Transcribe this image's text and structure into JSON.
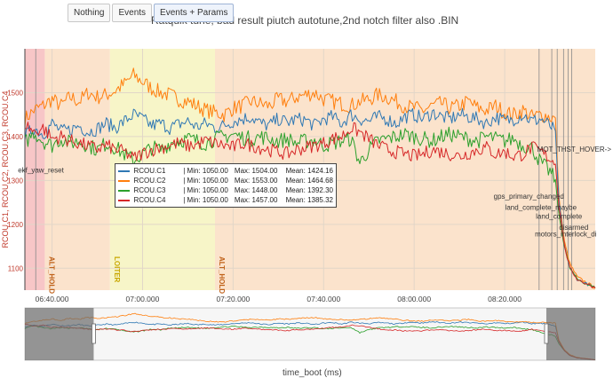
{
  "toolbar": {
    "buttons": [
      {
        "label": "Nothing"
      },
      {
        "label": "Events"
      },
      {
        "label": "Events + Params"
      }
    ]
  },
  "plot": {
    "title": "Ratquik tune, bad result piutch autotune,2nd notch filter also .BIN",
    "ylabel": "RCOU.C1, RCOU.C2, RCOU.C3, RCOU.C4",
    "xlabel": "time_boot (ms)"
  },
  "colors": {
    "c1": "#2f78b4",
    "c2": "#ff7f0e",
    "c3": "#2ca02c",
    "c4": "#d62728",
    "band_red": "#f7c6c7",
    "band_orange": "#fbe3cc",
    "band_yellow": "#f7f5c8"
  },
  "chart_data": {
    "type": "line",
    "ylim": [
      1050,
      1600
    ],
    "yticks": [
      1100,
      1200,
      1300,
      1400,
      1500
    ],
    "ytick_labels": [
      "1100",
      "1200",
      "1300",
      "1400",
      "1500"
    ],
    "xlim_seconds": [
      1.0,
      64.0
    ],
    "xticks": [
      {
        "t": 4.0,
        "label": "06:40.000"
      },
      {
        "t": 14.0,
        "label": "07:00.000"
      },
      {
        "t": 24.0,
        "label": "07:20.000"
      },
      {
        "t": 34.0,
        "label": "07:40.000"
      },
      {
        "t": 44.0,
        "label": "08:00.000"
      },
      {
        "t": 54.0,
        "label": "08:20.000"
      }
    ],
    "mode_bands": [
      {
        "from": 1.0,
        "to": 3.2,
        "color": "band_red",
        "label": ""
      },
      {
        "from": 3.2,
        "to": 10.4,
        "color": "band_orange",
        "label": "ALT_HOLD"
      },
      {
        "from": 10.4,
        "to": 22.0,
        "color": "band_yellow",
        "label": "LOITER"
      },
      {
        "from": 22.0,
        "to": 64.0,
        "color": "band_orange",
        "label": "ALT_HOLD"
      }
    ],
    "events": [
      {
        "t": 2.2,
        "label": "ekf_yaw_reset",
        "y": 1318
      },
      {
        "t": 57.8,
        "label": "gps_primary_changed",
        "y": 1258
      },
      {
        "t": 59.2,
        "label": "land_complete_maybe",
        "y": 1233
      },
      {
        "t": 59.8,
        "label": "land_complete",
        "y": 1213
      },
      {
        "t": 60.5,
        "label": "disarmed",
        "y": 1188
      },
      {
        "t": 61.4,
        "label": "motors_interlock_di",
        "y": 1172
      },
      {
        "t": 61.0,
        "label": "MOT_THST_HOVER->",
        "y": 1365
      }
    ],
    "series": [
      {
        "name": "RCOU.C1",
        "key": "c1",
        "min": "1050.00",
        "max": "1504.00",
        "mean": "1424.16",
        "x": [
          1,
          2,
          3,
          4,
          5,
          6,
          7,
          8,
          9,
          10,
          11,
          12,
          13,
          14,
          15,
          16,
          17,
          18,
          19,
          20,
          21,
          22,
          23,
          24,
          25,
          26,
          27,
          28,
          29,
          30,
          31,
          32,
          33,
          34,
          35,
          36,
          37,
          38,
          39,
          40,
          41,
          42,
          43,
          44,
          45,
          46,
          47,
          48,
          49,
          50,
          51,
          52,
          53,
          54,
          55,
          56,
          57,
          58,
          59,
          59.6,
          60,
          60.6,
          61.2,
          62,
          64
        ],
        "y": [
          1400,
          1420,
          1405,
          1430,
          1412,
          1415,
          1425,
          1410,
          1418,
          1430,
          1420,
          1435,
          1450,
          1440,
          1425,
          1430,
          1420,
          1428,
          1435,
          1422,
          1430,
          1420,
          1425,
          1435,
          1440,
          1445,
          1430,
          1425,
          1440,
          1432,
          1440,
          1438,
          1425,
          1440,
          1445,
          1430,
          1450,
          1440,
          1435,
          1445,
          1440,
          1430,
          1445,
          1450,
          1440,
          1455,
          1445,
          1440,
          1450,
          1445,
          1440,
          1430,
          1445,
          1435,
          1440,
          1450,
          1435,
          1440,
          1425,
          1410,
          1250,
          1150,
          1100,
          1075,
          1055
        ]
      },
      {
        "name": "RCOU.C2",
        "key": "c2",
        "min": "1050.00",
        "max": "1553.00",
        "mean": "1464.68",
        "x": [
          1,
          2,
          3,
          4,
          5,
          6,
          7,
          8,
          9,
          10,
          11,
          12,
          13,
          14,
          15,
          16,
          17,
          18,
          19,
          20,
          21,
          22,
          23,
          24,
          25,
          26,
          27,
          28,
          29,
          30,
          31,
          32,
          33,
          34,
          35,
          36,
          37,
          38,
          39,
          40,
          41,
          42,
          43,
          44,
          45,
          46,
          47,
          48,
          49,
          50,
          51,
          52,
          53,
          54,
          55,
          56,
          57,
          58,
          59,
          59.6,
          60,
          60.6,
          61.2,
          62,
          64
        ],
        "y": [
          1440,
          1460,
          1470,
          1485,
          1470,
          1490,
          1480,
          1500,
          1490,
          1495,
          1505,
          1520,
          1540,
          1525,
          1510,
          1500,
          1495,
          1485,
          1480,
          1470,
          1460,
          1455,
          1450,
          1465,
          1470,
          1480,
          1475,
          1470,
          1485,
          1480,
          1490,
          1495,
          1500,
          1485,
          1480,
          1475,
          1470,
          1480,
          1485,
          1495,
          1490,
          1480,
          1470,
          1465,
          1460,
          1470,
          1475,
          1465,
          1470,
          1480,
          1465,
          1460,
          1470,
          1455,
          1450,
          1460,
          1445,
          1450,
          1445,
          1440,
          1260,
          1160,
          1110,
          1080,
          1055
        ]
      },
      {
        "name": "RCOU.C3",
        "key": "c3",
        "min": "1050.00",
        "max": "1448.00",
        "mean": "1392.30",
        "x": [
          1,
          2,
          3,
          4,
          5,
          6,
          7,
          8,
          9,
          10,
          11,
          12,
          13,
          14,
          15,
          16,
          17,
          18,
          19,
          20,
          21,
          22,
          23,
          24,
          25,
          26,
          27,
          28,
          29,
          30,
          31,
          32,
          33,
          34,
          35,
          36,
          37,
          38,
          39,
          40,
          41,
          42,
          43,
          44,
          45,
          46,
          47,
          48,
          49,
          50,
          51,
          52,
          53,
          54,
          55,
          56,
          57,
          58,
          59,
          59.6,
          60,
          60.6,
          61.2,
          62,
          64
        ],
        "y": [
          1385,
          1410,
          1390,
          1380,
          1395,
          1385,
          1390,
          1380,
          1370,
          1385,
          1375,
          1360,
          1345,
          1360,
          1375,
          1370,
          1385,
          1390,
          1395,
          1390,
          1385,
          1395,
          1400,
          1405,
          1398,
          1395,
          1400,
          1395,
          1390,
          1395,
          1385,
          1390,
          1392,
          1380,
          1385,
          1390,
          1395,
          1340,
          1370,
          1390,
          1395,
          1400,
          1405,
          1400,
          1395,
          1390,
          1400,
          1405,
          1400,
          1395,
          1390,
          1400,
          1395,
          1390,
          1395,
          1380,
          1375,
          1340,
          1320,
          1300,
          1220,
          1150,
          1100,
          1075,
          1055
        ]
      },
      {
        "name": "RCOU.C4",
        "key": "c4",
        "min": "1050.00",
        "max": "1457.00",
        "mean": "1385.32",
        "x": [
          1,
          2,
          3,
          4,
          5,
          6,
          7,
          8,
          9,
          10,
          11,
          12,
          13,
          14,
          15,
          16,
          17,
          18,
          19,
          20,
          21,
          22,
          23,
          24,
          25,
          26,
          27,
          28,
          29,
          30,
          31,
          32,
          33,
          34,
          35,
          36,
          37,
          38,
          39,
          40,
          41,
          42,
          43,
          44,
          45,
          46,
          47,
          48,
          49,
          50,
          51,
          52,
          53,
          54,
          55,
          56,
          57,
          58,
          59,
          59.6,
          60,
          60.6,
          61.2,
          62,
          64
        ],
        "y": [
          1430,
          1410,
          1420,
          1395,
          1400,
          1390,
          1385,
          1378,
          1372,
          1380,
          1370,
          1365,
          1350,
          1362,
          1370,
          1375,
          1380,
          1385,
          1378,
          1382,
          1390,
          1385,
          1380,
          1375,
          1385,
          1380,
          1375,
          1370,
          1365,
          1360,
          1370,
          1375,
          1380,
          1385,
          1395,
          1400,
          1420,
          1410,
          1395,
          1380,
          1370,
          1365,
          1360,
          1355,
          1360,
          1370,
          1365,
          1360,
          1355,
          1362,
          1370,
          1375,
          1360,
          1365,
          1355,
          1360,
          1375,
          1365,
          1350,
          1340,
          1240,
          1150,
          1100,
          1075,
          1055
        ]
      }
    ]
  }
}
